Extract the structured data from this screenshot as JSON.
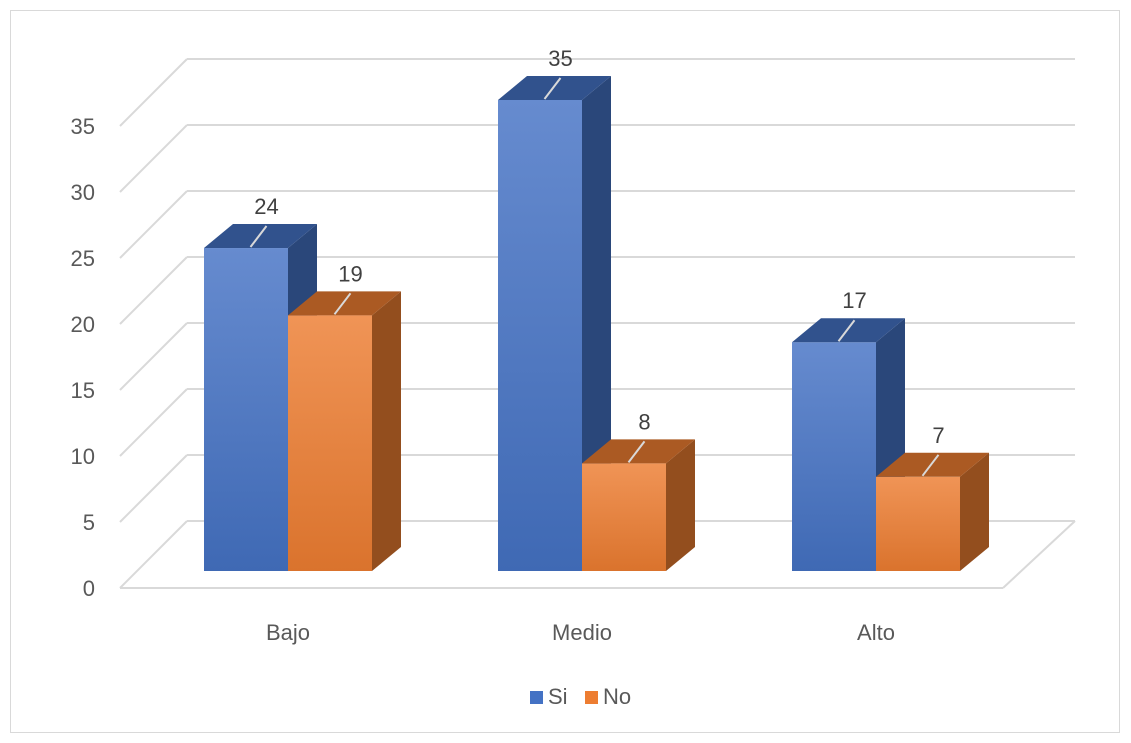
{
  "chart_data": {
    "type": "bar",
    "style": "3d-clustered-column",
    "categories": [
      "Bajo",
      "Medio",
      "Alto"
    ],
    "series": [
      {
        "name": "Si",
        "values": [
          24,
          35,
          17
        ],
        "color": "#4472C4"
      },
      {
        "name": "No",
        "values": [
          19,
          8,
          7
        ],
        "color": "#ED7D31"
      }
    ],
    "y_ticks": [
      "0",
      "5",
      "10",
      "15",
      "20",
      "25",
      "30",
      "35"
    ],
    "ylim": [
      0,
      35
    ],
    "grid": true,
    "legend": "bottom",
    "data_labels": true,
    "title": "",
    "xlabel": "",
    "ylabel": ""
  }
}
